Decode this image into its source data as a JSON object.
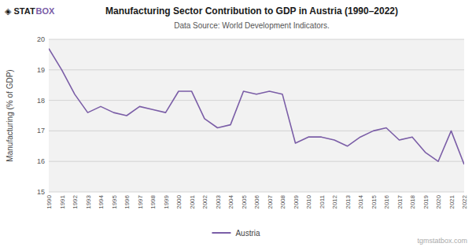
{
  "chart_data": {
    "type": "line",
    "title": "Manufacturing Sector Contribution to GDP in Austria (1990–2022)",
    "subtitle": "Data Source: World Development Indicators.",
    "y_label": "Manufacturing (% of GDP)",
    "x": [
      1990,
      1991,
      1992,
      1993,
      1994,
      1995,
      1996,
      1997,
      1998,
      1999,
      2000,
      2001,
      2002,
      2003,
      2004,
      2005,
      2006,
      2007,
      2008,
      2009,
      2010,
      2011,
      2012,
      2013,
      2014,
      2015,
      2016,
      2017,
      2018,
      2019,
      2020,
      2021,
      2022
    ],
    "series": [
      {
        "name": "Austria",
        "color": "#7b5ea7",
        "values": [
          19.7,
          19.0,
          18.2,
          17.6,
          17.8,
          17.6,
          17.5,
          17.8,
          17.7,
          17.6,
          18.3,
          18.3,
          17.4,
          17.1,
          17.2,
          18.3,
          18.2,
          18.3,
          18.2,
          16.6,
          16.8,
          16.8,
          16.7,
          16.5,
          16.8,
          17.0,
          17.1,
          16.7,
          16.8,
          16.3,
          16.0,
          17.0,
          15.9
        ]
      }
    ],
    "xlim": [
      1990,
      2022
    ],
    "xticks": [
      1990,
      1991,
      1992,
      1993,
      1994,
      1995,
      1996,
      1997,
      1998,
      1999,
      2000,
      2001,
      2002,
      2003,
      2004,
      2005,
      2006,
      2007,
      2008,
      2009,
      2010,
      2011,
      2012,
      2013,
      2014,
      2015,
      2016,
      2017,
      2018,
      2019,
      2020,
      2021,
      2022
    ],
    "ylim": [
      15,
      20
    ],
    "yticks": [
      15,
      16,
      17,
      18,
      19,
      20
    ],
    "grid": true,
    "legend": "bottom",
    "annotations": [
      "◈ STAT",
      "BOX",
      "tgmstatbox.com"
    ]
  }
}
